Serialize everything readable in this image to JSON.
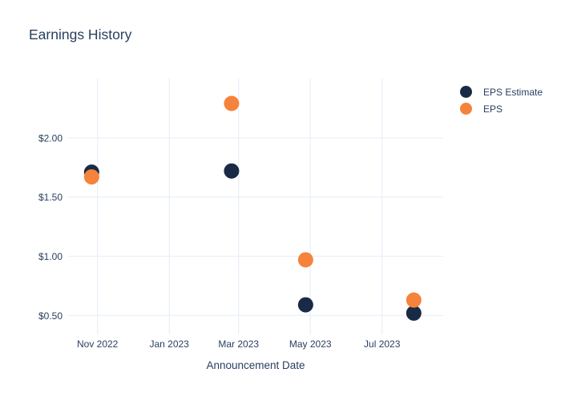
{
  "chart_data": {
    "type": "scatter",
    "title": "Earnings History",
    "xlabel": "Announcement Date",
    "ylabel": "",
    "grid": true,
    "legend_position": "right-top",
    "x_axis": {
      "range": [
        "2022-10-07",
        "2023-08-22"
      ],
      "ticks": [
        {
          "label": "Nov 2022",
          "date": "2022-11-01"
        },
        {
          "label": "Jan 2023",
          "date": "2023-01-01"
        },
        {
          "label": "Mar 2023",
          "date": "2023-03-01"
        },
        {
          "label": "May 2023",
          "date": "2023-05-01"
        },
        {
          "label": "Jul 2023",
          "date": "2023-07-01"
        }
      ]
    },
    "y_axis": {
      "range": [
        0.34,
        2.5
      ],
      "ticks": [
        {
          "label": "$0.50",
          "value": 0.5
        },
        {
          "label": "$1.00",
          "value": 1.0
        },
        {
          "label": "$1.50",
          "value": 1.5
        },
        {
          "label": "$2.00",
          "value": 2.0
        }
      ]
    },
    "series": [
      {
        "name": "EPS Estimate",
        "color": "#182a45",
        "marker": "circle",
        "points": [
          {
            "date": "2022-10-27",
            "value": 1.71
          },
          {
            "date": "2023-02-23",
            "value": 1.72
          },
          {
            "date": "2023-04-27",
            "value": 0.59
          },
          {
            "date": "2023-07-28",
            "value": 0.52
          }
        ]
      },
      {
        "name": "EPS",
        "color": "#f6833b",
        "marker": "circle",
        "points": [
          {
            "date": "2022-10-27",
            "value": 1.67
          },
          {
            "date": "2023-02-23",
            "value": 2.29
          },
          {
            "date": "2023-04-27",
            "value": 0.97
          },
          {
            "date": "2023-07-28",
            "value": 0.63
          }
        ]
      }
    ],
    "colors": {
      "text": "#2a3f5f",
      "gridline": "#ebf0f8",
      "background": "#ffffff"
    }
  }
}
